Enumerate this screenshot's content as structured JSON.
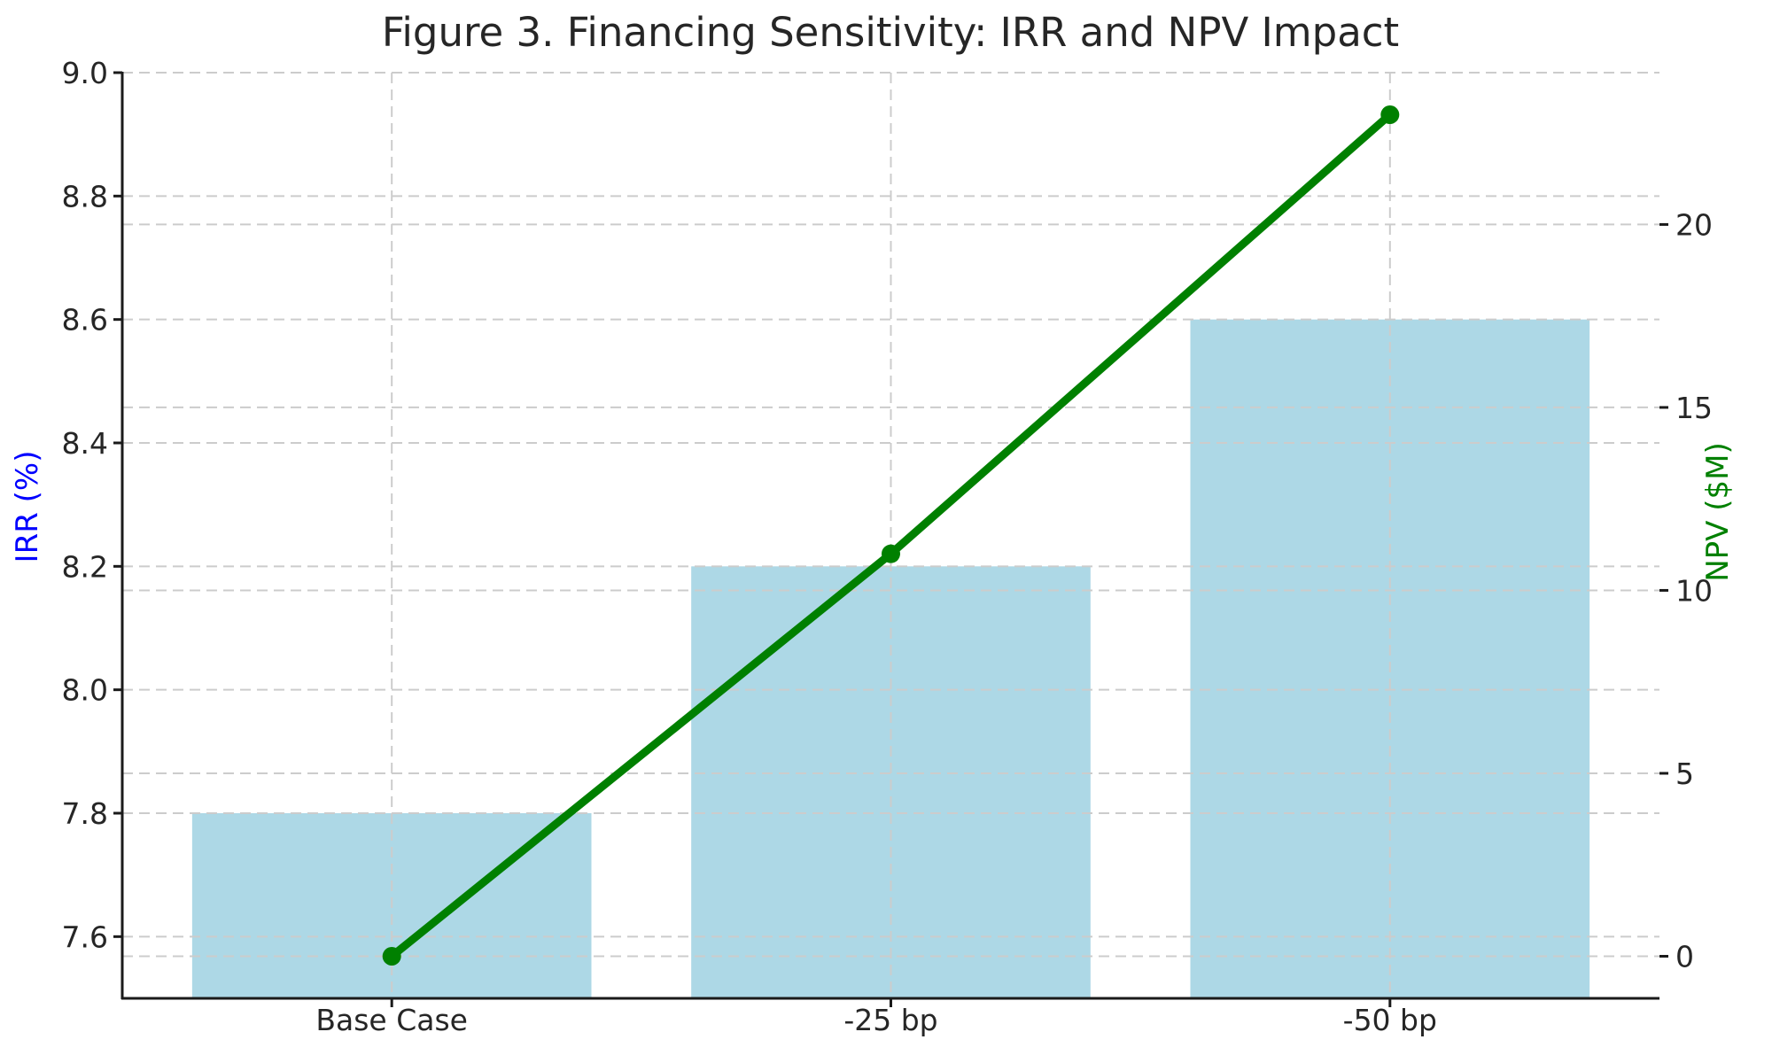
{
  "chart_data": {
    "type": "combo-bar-line-dual-axis",
    "title": "Figure 3. Financing Sensitivity: IRR and NPV Impact",
    "categories": [
      "Base Case",
      "-25 bp",
      "-50 bp"
    ],
    "series": [
      {
        "name": "IRR",
        "type": "bar",
        "axis": "left",
        "values": [
          7.8,
          8.2,
          8.6
        ],
        "color": "#ADD8E6"
      },
      {
        "name": "NPV",
        "type": "line",
        "axis": "right",
        "values": [
          0,
          11,
          23
        ],
        "color": "#008000",
        "marker": "circle"
      }
    ],
    "left_axis": {
      "label": "IRR (%)",
      "label_color": "#0000FF",
      "ticks": [
        7.6,
        7.8,
        8.0,
        8.2,
        8.4,
        8.6,
        8.8,
        9.0
      ],
      "tick_labels": [
        "7.6",
        "7.8",
        "8.0",
        "8.2",
        "8.4",
        "8.6",
        "8.8",
        "9.0"
      ],
      "ylim": [
        7.5,
        9.0
      ]
    },
    "right_axis": {
      "label": "NPV ($M)",
      "label_color": "#008000",
      "ticks": [
        0,
        5,
        10,
        15,
        20
      ],
      "tick_labels": [
        "0",
        "5",
        "10",
        "15",
        "20"
      ],
      "ylim": [
        -1.15,
        24.15
      ]
    },
    "x_axis": {
      "xlim": [
        -0.54,
        2.54
      ],
      "bar_width": 0.8
    },
    "grid": {
      "show": true,
      "style": "dashed",
      "color": "#cccccc"
    },
    "text_color": "#262626",
    "spine_color": "#1a1a1a",
    "background": "#ffffff"
  }
}
